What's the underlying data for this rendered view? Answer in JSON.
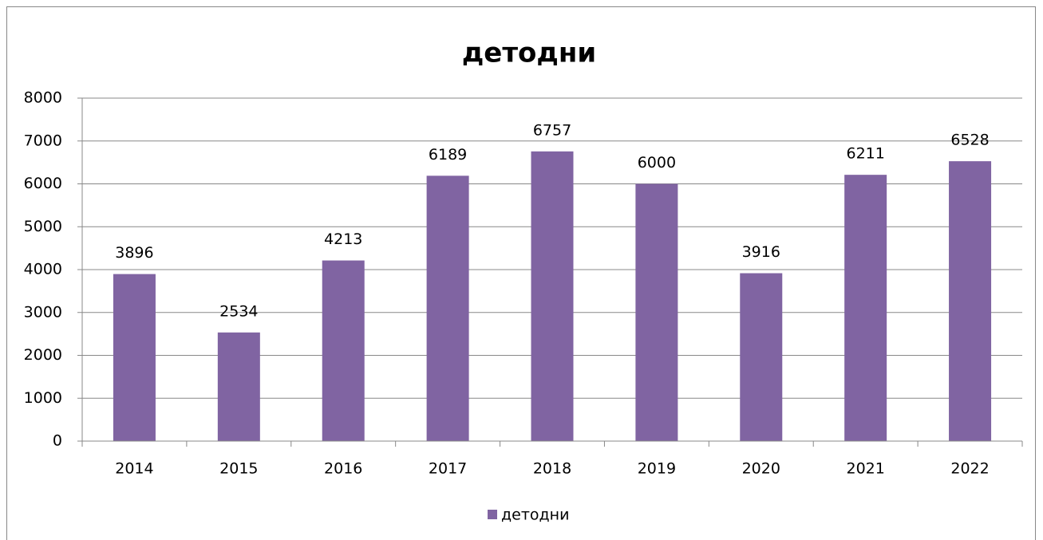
{
  "chart_data": {
    "type": "bar",
    "title": "детодни",
    "categories": [
      "2014",
      "2015",
      "2016",
      "2017",
      "2018",
      "2019",
      "2020",
      "2021",
      "2022"
    ],
    "series": [
      {
        "name": "детодни",
        "color": "#8064a2",
        "values": [
          3896,
          2534,
          4213,
          6189,
          6757,
          6000,
          3916,
          6211,
          6528
        ]
      }
    ],
    "ylim": [
      0,
      8000
    ],
    "yticks": [
      0,
      1000,
      2000,
      3000,
      4000,
      5000,
      6000,
      7000,
      8000
    ],
    "grid": true,
    "legend": "bottom"
  }
}
